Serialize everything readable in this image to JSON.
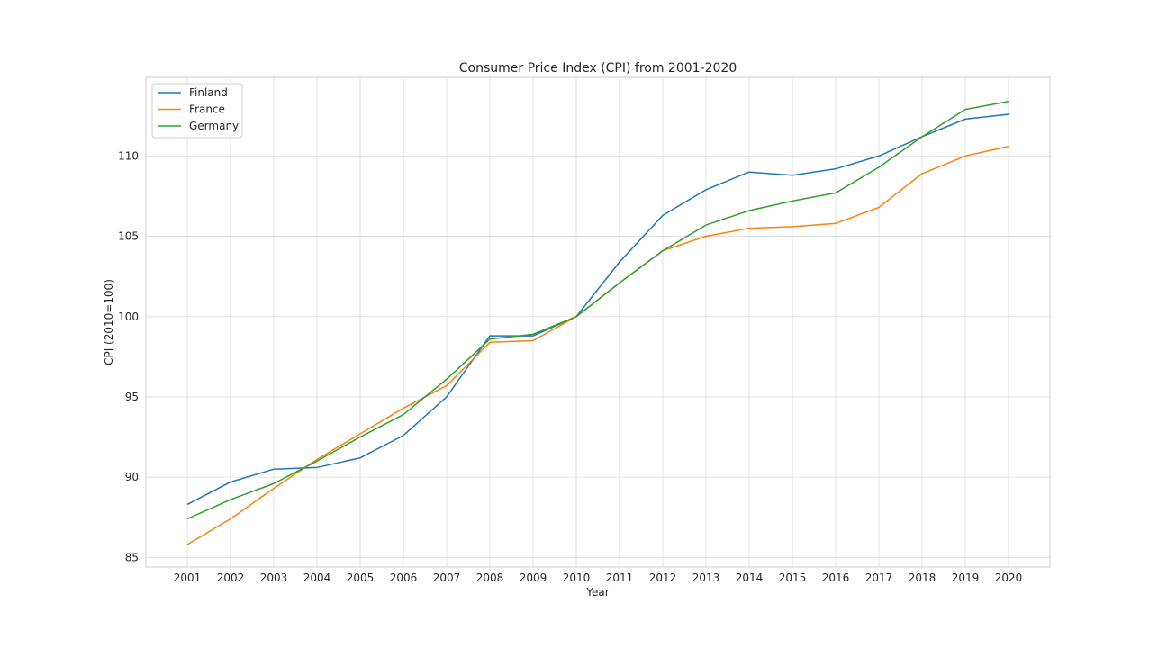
{
  "chart_data": {
    "type": "line",
    "title": "Consumer Price Index (CPI) from 2001-2020",
    "xlabel": "Year",
    "ylabel": "CPI (2010=100)",
    "x": [
      "2001",
      "2002",
      "2003",
      "2004",
      "2005",
      "2006",
      "2007",
      "2008",
      "2009",
      "2010",
      "2011",
      "2012",
      "2013",
      "2014",
      "2015",
      "2016",
      "2017",
      "2018",
      "2019",
      "2020"
    ],
    "xlim": [
      0,
      19
    ],
    "ylim": [
      84.4,
      114.9
    ],
    "yticks": [
      85,
      90,
      95,
      100,
      105,
      110
    ],
    "grid": true,
    "legend_position": "top-left",
    "series": [
      {
        "name": "Finland",
        "color": "#1f77b4",
        "values": [
          88.3,
          89.7,
          90.5,
          90.6,
          91.2,
          92.6,
          95.0,
          98.8,
          98.8,
          100.0,
          103.4,
          106.3,
          107.9,
          109.0,
          108.8,
          109.2,
          110.0,
          111.2,
          112.3,
          112.6
        ]
      },
      {
        "name": "France",
        "color": "#ff7f0e",
        "values": [
          85.8,
          87.4,
          89.3,
          91.1,
          92.7,
          94.3,
          95.7,
          98.4,
          98.5,
          100.0,
          102.1,
          104.1,
          105.0,
          105.5,
          105.6,
          105.8,
          106.8,
          108.9,
          110.0,
          110.6
        ]
      },
      {
        "name": "Germany",
        "color": "#2ca02c",
        "values": [
          87.4,
          88.6,
          89.6,
          91.0,
          92.5,
          93.9,
          96.1,
          98.6,
          98.9,
          100.0,
          102.1,
          104.1,
          105.7,
          106.6,
          107.2,
          107.7,
          109.3,
          111.2,
          112.9,
          113.4
        ]
      }
    ]
  }
}
